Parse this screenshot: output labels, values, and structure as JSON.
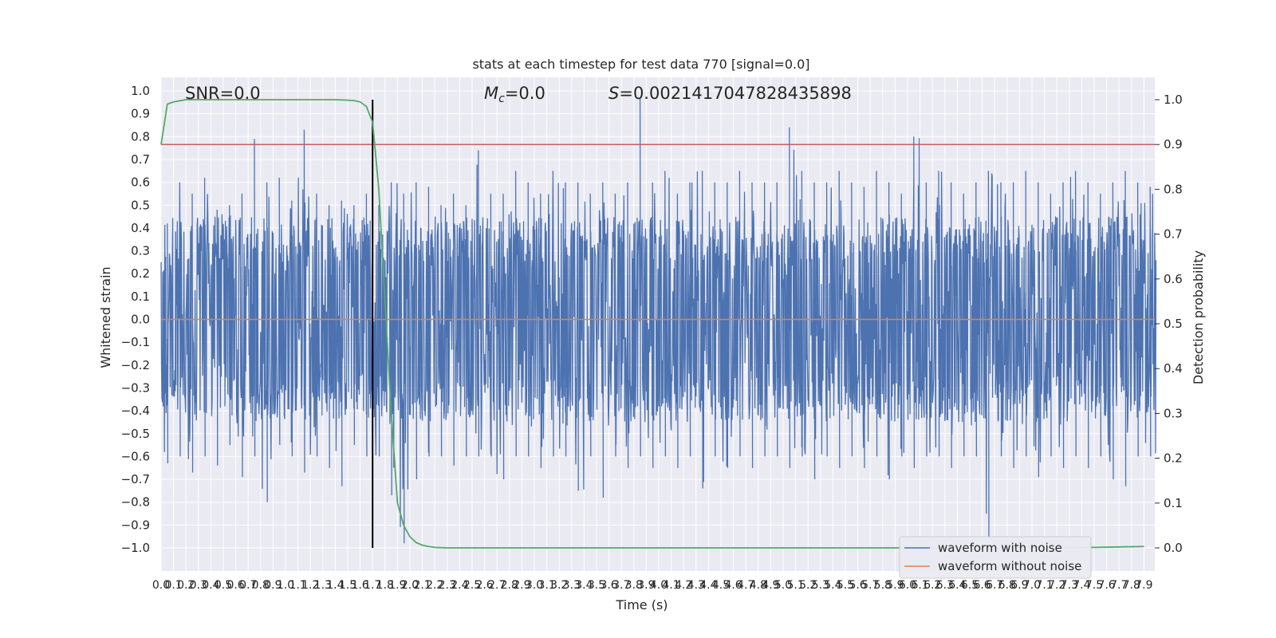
{
  "chart_data": {
    "type": "line",
    "title": "stats at each timestep for test data 770 [signal=0.0]",
    "xlabel": "Time (s)",
    "ylabel": "Whitened strain",
    "y2label": "Detection probability",
    "xlim": [
      0.0,
      8.0
    ],
    "ylim": [
      -1.1,
      1.06
    ],
    "y2lim": [
      -0.05,
      1.04
    ],
    "grid": true,
    "legend_position": "lower-right",
    "x_tick_labels": [
      "0.0",
      "0.1",
      "0.2",
      "0.3",
      "0.4",
      "0.5",
      "0.6",
      "0.7",
      "0.8",
      "0.9",
      "1.0",
      "1.1",
      "1.2",
      "1.3",
      "1.4",
      "1.5",
      "1.6",
      "1.7",
      "1.8",
      "1.9",
      "2.0",
      "2.1",
      "2.2",
      "2.3",
      "2.4",
      "2.5",
      "2.6",
      "2.7",
      "2.8",
      "2.9",
      "3.0",
      "3.1",
      "3.2",
      "3.3",
      "3.4",
      "3.5",
      "3.6",
      "3.7",
      "3.8",
      "3.9",
      "4.0",
      "4.1",
      "4.2",
      "4.3",
      "4.4",
      "4.5",
      "4.6",
      "4.7",
      "4.8",
      "4.9",
      "5.0",
      "5.1",
      "5.2",
      "5.3",
      "5.4",
      "5.5",
      "5.6",
      "5.7",
      "5.8",
      "5.9",
      "6.0",
      "6.1",
      "6.2",
      "6.3",
      "6.4",
      "6.5",
      "6.6",
      "6.7",
      "6.8",
      "6.9",
      "7.0",
      "7.1",
      "7.2",
      "7.3",
      "7.4",
      "7.5",
      "7.6",
      "7.7",
      "7.8",
      "7.9"
    ],
    "y_tick_labels": [
      "1.0",
      "0.9",
      "0.8",
      "0.7",
      "0.6",
      "0.5",
      "0.4",
      "0.3",
      "0.2",
      "0.1",
      "0.0",
      "−0.1",
      "−0.2",
      "−0.3",
      "−0.4",
      "−0.5",
      "−0.6",
      "−0.7",
      "−0.8",
      "−0.9",
      "−1.0"
    ],
    "y2_tick_labels": [
      "1.0",
      "0.9",
      "0.8",
      "0.7",
      "0.6",
      "0.5",
      "0.4",
      "0.3",
      "0.2",
      "0.1",
      "0.0"
    ],
    "annotations": {
      "snr": "SNR=0.0",
      "mc_symbol": "M",
      "mc_subscript": "c",
      "mc_value": "=0.0",
      "s_symbol": "S",
      "s_value": "=0.0021417047828435898"
    },
    "threshold": 0.9,
    "vertical_marker_x": 1.7,
    "series": [
      {
        "name": "waveform with noise",
        "color": "#4c72b0",
        "description_values": "dense noise, envelope approx",
        "envelope_upper": [
          0.42,
          0.6,
          0.55,
          0.62,
          0.48,
          0.5,
          0.55,
          0.79,
          0.6,
          0.62,
          0.52,
          0.83,
          0.55,
          0.5,
          0.52,
          0.5,
          0.55,
          0.5,
          0.6,
          0.55,
          0.6,
          0.58,
          0.5,
          0.55,
          0.5,
          0.74,
          0.55,
          0.55,
          0.65,
          0.6,
          0.55,
          0.65,
          0.6,
          0.6,
          0.55,
          0.6,
          0.55,
          0.6,
          0.97,
          0.6,
          0.65,
          0.55,
          0.6,
          0.65,
          0.6,
          0.6,
          0.65,
          0.6,
          0.6,
          0.6,
          0.84,
          0.65,
          0.6,
          0.6,
          0.65,
          0.6,
          0.58,
          0.65,
          0.6,
          0.55,
          0.8,
          0.6,
          0.65,
          0.6,
          0.55,
          0.6,
          0.65,
          0.6,
          0.6,
          0.65,
          0.6,
          0.55,
          0.6,
          0.65,
          0.6,
          0.55,
          0.6,
          0.65,
          0.6,
          0.58
        ],
        "envelope_lower": [
          -0.63,
          -0.6,
          -0.67,
          -0.6,
          -0.64,
          -0.55,
          -0.69,
          -0.6,
          -0.8,
          -0.55,
          -0.6,
          -0.67,
          -0.6,
          -0.65,
          -0.73,
          -0.55,
          -0.6,
          -0.6,
          -0.77,
          -0.98,
          -0.7,
          -0.6,
          -0.6,
          -0.64,
          -0.6,
          -0.6,
          -0.6,
          -0.7,
          -0.6,
          -0.6,
          -0.65,
          -0.6,
          -0.6,
          -0.75,
          -0.6,
          -0.78,
          -0.6,
          -0.65,
          -0.6,
          -0.65,
          -0.6,
          -0.65,
          -0.6,
          -0.74,
          -0.6,
          -0.65,
          -0.6,
          -0.65,
          -0.6,
          -0.6,
          -0.65,
          -0.6,
          -0.7,
          -0.6,
          -0.65,
          -0.6,
          -0.65,
          -0.6,
          -0.7,
          -0.6,
          -0.65,
          -0.6,
          -0.6,
          -0.65,
          -0.6,
          -0.6,
          -0.96,
          -0.6,
          -0.65,
          -0.6,
          -0.69,
          -0.6,
          -0.65,
          -0.6,
          -0.65,
          -0.6,
          -0.7,
          -0.73,
          -0.6,
          -0.6
        ]
      },
      {
        "name": "waveform without noise",
        "color": "#dd8452",
        "x": [
          0.0,
          8.0
        ],
        "y": [
          0.0,
          0.0
        ]
      },
      {
        "name": "",
        "color": "#55a868",
        "axis": "right",
        "x": [
          0.0,
          0.05,
          0.1,
          0.2,
          0.4,
          0.6,
          0.8,
          1.0,
          1.2,
          1.4,
          1.5,
          1.55,
          1.6,
          1.65,
          1.7,
          1.75,
          1.8,
          1.85,
          1.9,
          1.95,
          2.0,
          2.05,
          2.1,
          2.15,
          2.2,
          2.3,
          2.5,
          3.0,
          4.0,
          5.0,
          6.0,
          7.0,
          7.5,
          7.9
        ],
        "y": [
          0.9,
          0.99,
          0.995,
          1.0,
          1.0,
          1.0,
          1.0,
          1.0,
          1.0,
          1.0,
          0.999,
          0.998,
          0.995,
          0.985,
          0.95,
          0.8,
          0.55,
          0.3,
          0.1,
          0.05,
          0.025,
          0.012,
          0.006,
          0.003,
          0.001,
          0.0,
          0.0,
          0.0,
          0.0,
          0.0,
          0.0,
          0.0,
          0.001,
          0.003
        ]
      }
    ]
  }
}
